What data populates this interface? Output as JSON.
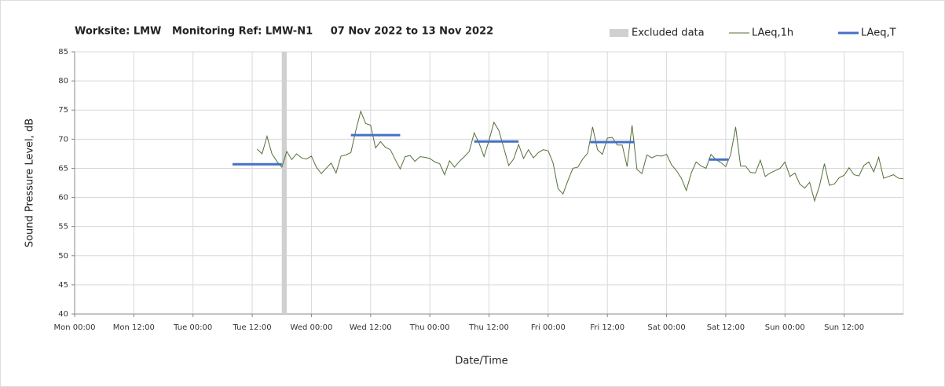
{
  "chart_data": {
    "type": "line",
    "title": "Worksite: LMW   Monitoring Ref: LMW-N1     07 Nov 2022 to 13 Nov 2022",
    "x_label": "Date/Time",
    "y_label": "Sound Pressure Level, dB",
    "xlim": [
      0,
      168
    ],
    "xticks": [
      {
        "value": 0,
        "label": "Mon 00:00"
      },
      {
        "value": 12,
        "label": "Mon 12:00"
      },
      {
        "value": 24,
        "label": "Tue 00:00"
      },
      {
        "value": 36,
        "label": "Tue 12:00"
      },
      {
        "value": 48,
        "label": "Wed 00:00"
      },
      {
        "value": 60,
        "label": "Wed 12:00"
      },
      {
        "value": 72,
        "label": "Thu 00:00"
      },
      {
        "value": 84,
        "label": "Thu 12:00"
      },
      {
        "value": 96,
        "label": "Fri 00:00"
      },
      {
        "value": 108,
        "label": "Fri 12:00"
      },
      {
        "value": 120,
        "label": "Sat 00:00"
      },
      {
        "value": 132,
        "label": "Sat 12:00"
      },
      {
        "value": 144,
        "label": "Sun 00:00"
      },
      {
        "value": 156,
        "label": "Sun 12:00"
      }
    ],
    "ylim": [
      40,
      85
    ],
    "yticks": [
      40,
      45,
      50,
      55,
      60,
      65,
      70,
      75,
      80,
      85
    ],
    "grid": true,
    "legend": "top-right",
    "excluded": {
      "name": "Excluded data",
      "color": "#d0d0d0",
      "x": [
        42,
        43
      ]
    },
    "series": [
      {
        "name": "LAeq,1h",
        "color": "#55703a",
        "x": [
          37,
          38,
          39,
          40,
          41,
          42,
          43,
          44,
          45,
          46,
          47,
          48,
          49,
          50,
          51,
          52,
          53,
          54,
          55,
          56,
          57,
          58,
          59,
          60,
          61,
          62,
          63,
          64,
          65,
          66,
          67,
          68,
          69,
          70,
          71,
          72,
          73,
          74,
          75,
          76,
          77,
          78,
          79,
          80,
          81,
          82,
          83,
          84,
          85,
          86,
          87,
          88,
          89,
          90,
          91,
          92,
          93,
          94,
          95,
          96,
          97,
          98,
          99,
          100,
          101,
          102,
          103,
          104,
          105,
          106,
          107,
          108,
          109,
          110,
          111,
          112,
          113,
          114,
          115,
          116,
          117,
          118,
          119,
          120,
          121,
          122,
          123,
          124,
          125,
          126,
          127,
          128,
          129,
          130,
          131,
          132,
          133,
          134,
          135,
          136,
          137,
          138,
          139,
          140,
          141,
          142,
          143,
          144,
          145,
          146,
          147,
          148,
          149,
          150,
          151,
          152,
          153,
          154,
          155,
          156,
          157,
          158,
          159,
          160,
          161,
          162,
          163,
          164,
          165,
          166,
          167,
          168
        ],
        "values": [
          68.3,
          67.5,
          70.5,
          67.5,
          66.2,
          65.2,
          67.9,
          66.5,
          67.5,
          66.8,
          66.6,
          67.1,
          65.2,
          64.1,
          65,
          65.9,
          64.2,
          67.1,
          67.3,
          67.7,
          71.5,
          74.8,
          72.7,
          72.4,
          68.5,
          69.6,
          68.6,
          68.2,
          66.5,
          64.9,
          67.0,
          67.2,
          66.2,
          67.0,
          66.9,
          66.7,
          66.1,
          65.8,
          63.9,
          66.3,
          65.2,
          66.2,
          67.0,
          67.9,
          71.1,
          69.3,
          67.0,
          69.8,
          72.9,
          71.5,
          68.5,
          65.5,
          66.6,
          69.1,
          66.7,
          68.2,
          66.8,
          67.7,
          68.2,
          68.0,
          65.9,
          61.5,
          60.6,
          62.9,
          65.0,
          65.2,
          66.6,
          67.6,
          72.1,
          68.2,
          67.4,
          70.2,
          70.3,
          69.0,
          69.0,
          65.3,
          72.4,
          64.8,
          64.1,
          67.3,
          66.8,
          67.2,
          67.1,
          67.4,
          65.6,
          64.6,
          63.3,
          61.2,
          64.2,
          66.1,
          65.4,
          65.0,
          67.4,
          66.5,
          66.0,
          65.3,
          67.4,
          72.1,
          65.4,
          65.4,
          64.3,
          64.2,
          66.4,
          63.6,
          64.2,
          64.6,
          65.0,
          66.1,
          63.6,
          64.2,
          62.3,
          61.6,
          62.6,
          59.4,
          62.0,
          65.8,
          62.1,
          62.3,
          63.4,
          63.8,
          65.1,
          63.9,
          63.7,
          65.5,
          66.1,
          64.4,
          66.9,
          63.3,
          63.6,
          63.9,
          63.3,
          63.2
        ]
      },
      {
        "name": "LAeq,T",
        "color": "#4472c4",
        "segments": [
          {
            "x": [
              32,
              42
            ],
            "value": 65.7
          },
          {
            "x": [
              56,
              66
            ],
            "value": 70.7
          },
          {
            "x": [
              81,
              90
            ],
            "value": 69.6
          },
          {
            "x": [
              104.5,
              113.5
            ],
            "value": 69.5
          },
          {
            "x": [
              128.5,
              132.5
            ],
            "value": 66.5
          }
        ]
      }
    ]
  }
}
